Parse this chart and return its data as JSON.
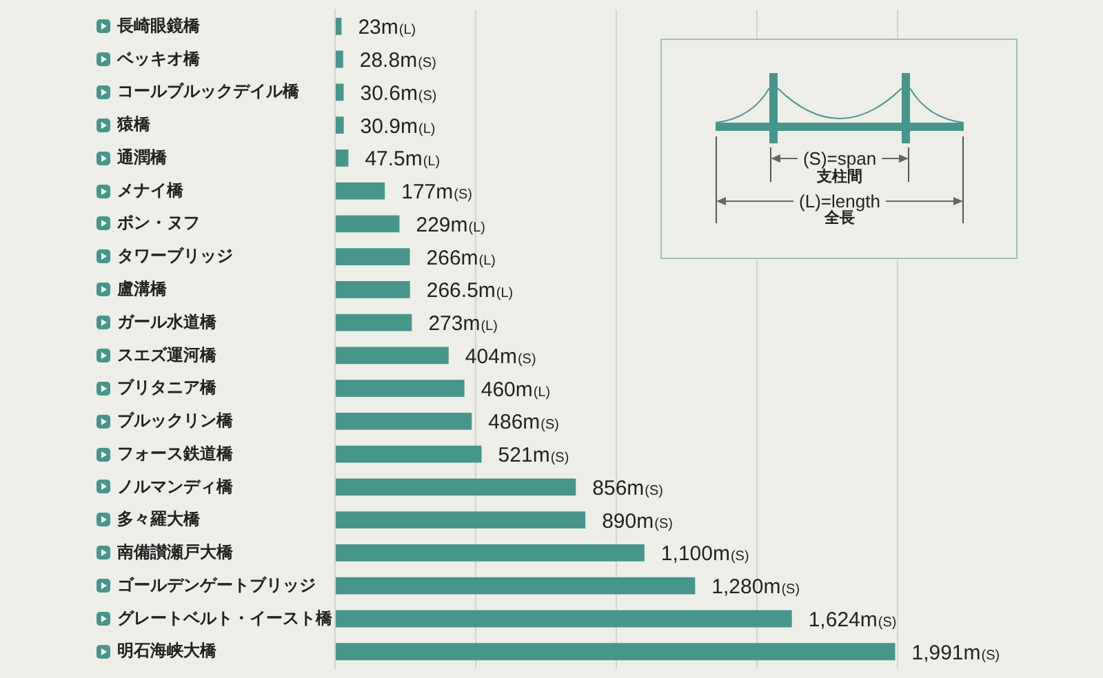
{
  "chart_data": {
    "type": "bar",
    "orientation": "horizontal",
    "categories": [
      "長崎眼鏡橋",
      "ベッキオ橋",
      "コールブルックデイル橋",
      "猿橋",
      "通潤橋",
      "メナイ橋",
      "ボン・ヌフ",
      "タワーブリッジ",
      "盧溝橋",
      "ガール水道橋",
      "スエズ運河橋",
      "ブリタニア橋",
      "ブルックリン橋",
      "フォース鉄道橋",
      "ノルマンディ橋",
      "多々羅大橋",
      "南備讃瀬戸大橋",
      "ゴールデンゲートブリッジ",
      "グレートベルト・イースト橋",
      "明石海峡大橋"
    ],
    "values": [
      23,
      28.8,
      30.6,
      30.9,
      47.5,
      177,
      229,
      266,
      266.5,
      273,
      404,
      460,
      486,
      521,
      856,
      890,
      1100,
      1280,
      1624,
      1991
    ],
    "value_labels": [
      "23m(L)",
      "28.8m(S)",
      "30.6m(S)",
      "30.9m(L)",
      "47.5m(L)",
      "177m(S)",
      "229m(L)",
      "266m(L)",
      "266.5m(L)",
      "273m(L)",
      "404m(S)",
      "460m(L)",
      "486m(S)",
      "521m(S)",
      "856m(S)",
      "890m(S)",
      "1,100m(S)",
      "1,280m(S)",
      "1,624m(S)",
      "1,991m(S)"
    ],
    "color": "#46968b",
    "xlim": [
      0,
      2730
    ],
    "xticks": [
      {
        "value": 0,
        "label": null
      },
      {
        "value": 500,
        "label": null
      },
      {
        "value": 1000,
        "label": null
      },
      {
        "value": 1500,
        "label": null
      },
      {
        "value": 2000,
        "label": null
      }
    ],
    "grid": "x",
    "tick_labels": "y",
    "annotations": [
      "(S)=span",
      "支柱間",
      "(L)=length",
      "全長"
    ]
  }
}
